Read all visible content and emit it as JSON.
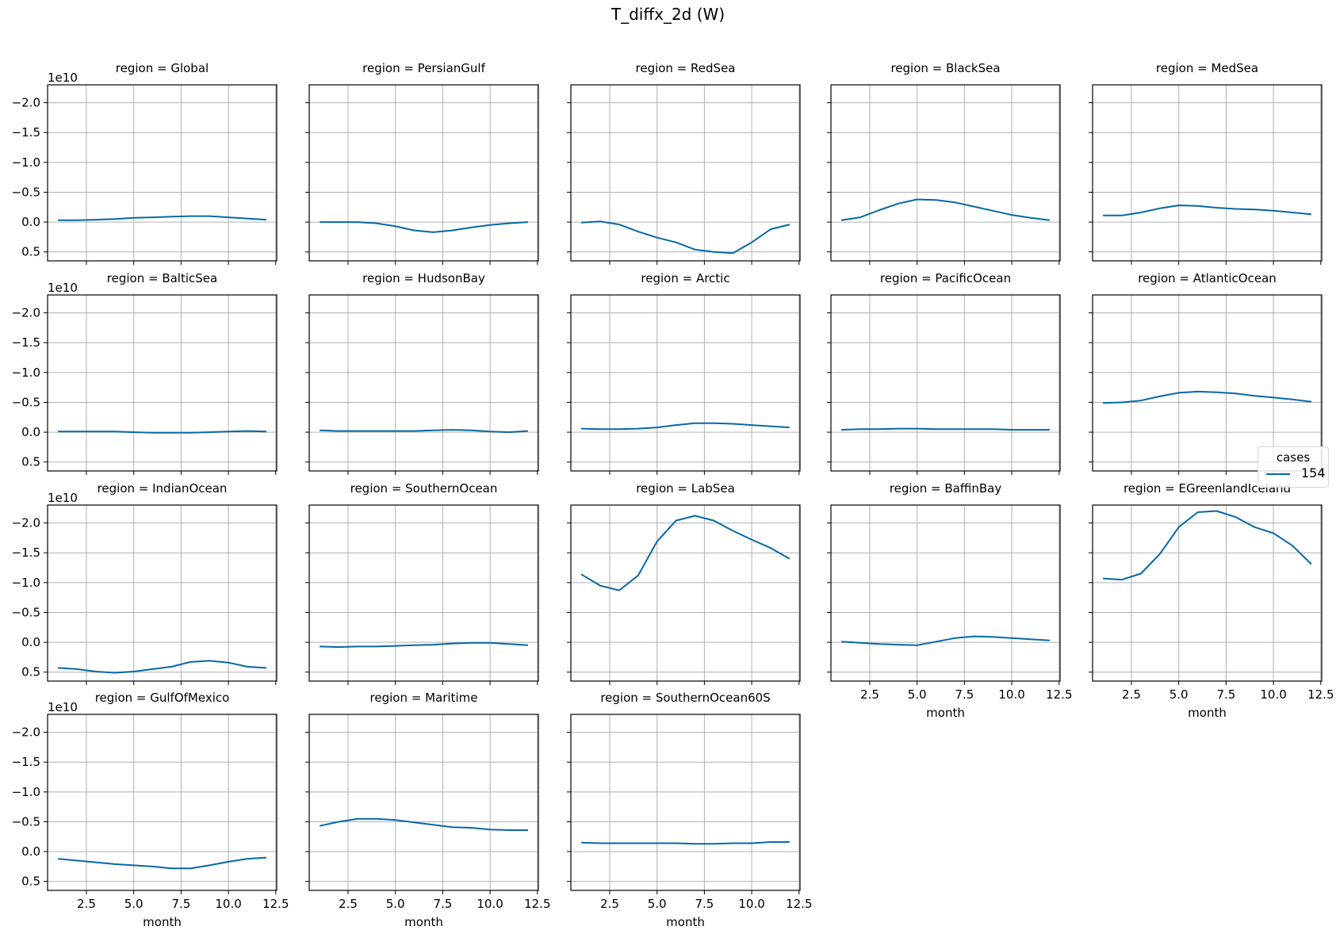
{
  "figure": {
    "title": "T_diffx_2d (W)",
    "line_color": "#0668a6",
    "grid_color": "#b0b0b0"
  },
  "legend": {
    "title": "cases",
    "entries": [
      {
        "label": "154",
        "color": "#0668a6"
      }
    ]
  },
  "chart_data": {
    "type": "line",
    "title": "T_diffx_2d (W)",
    "xlabel": "month",
    "ylabel": "",
    "y_scale_label": "1e10",
    "y_inverted": true,
    "ylim": [
      0.65,
      -2.3
    ],
    "xlim": [
      0.45,
      12.55
    ],
    "x_ticks": [
      "2.5",
      "5.0",
      "7.5",
      "10.0",
      "12.5"
    ],
    "y_ticks": [
      "−2.0",
      "−1.5",
      "−1.0",
      "−0.5",
      "0.0",
      "0.5"
    ],
    "y_tick_values": [
      -2.0,
      -1.5,
      -1.0,
      -0.5,
      0.0,
      0.5
    ],
    "x_tick_values": [
      2.5,
      5.0,
      7.5,
      10.0,
      12.5
    ],
    "grid": true,
    "legend_title": "cases",
    "legend_position": "right",
    "x": [
      1,
      2,
      3,
      4,
      5,
      6,
      7,
      8,
      9,
      10,
      11,
      12
    ],
    "series_name": "154",
    "panels": [
      {
        "title": "region = Global",
        "values": [
          -0.03,
          -0.03,
          -0.04,
          -0.05,
          -0.07,
          -0.08,
          -0.09,
          -0.1,
          -0.1,
          -0.08,
          -0.06,
          -0.04
        ]
      },
      {
        "title": "region = PersianGulf",
        "values": [
          0.0,
          0.0,
          0.0,
          0.02,
          0.07,
          0.14,
          0.17,
          0.14,
          0.09,
          0.05,
          0.02,
          0.0
        ]
      },
      {
        "title": "region = RedSea",
        "values": [
          0.01,
          -0.01,
          0.04,
          0.16,
          0.26,
          0.34,
          0.46,
          0.5,
          0.52,
          0.34,
          0.12,
          0.04
        ]
      },
      {
        "title": "region = BlackSea",
        "values": [
          -0.03,
          -0.08,
          -0.2,
          -0.31,
          -0.38,
          -0.37,
          -0.33,
          -0.26,
          -0.19,
          -0.12,
          -0.07,
          -0.03
        ]
      },
      {
        "title": "region = MedSea",
        "values": [
          -0.11,
          -0.11,
          -0.16,
          -0.23,
          -0.28,
          -0.27,
          -0.24,
          -0.22,
          -0.21,
          -0.19,
          -0.16,
          -0.13
        ]
      },
      {
        "title": "region = BalticSea",
        "values": [
          -0.01,
          -0.01,
          -0.01,
          -0.01,
          0.0,
          0.01,
          0.01,
          0.01,
          0.0,
          -0.01,
          -0.02,
          -0.01
        ]
      },
      {
        "title": "region = HudsonBay",
        "values": [
          -0.03,
          -0.02,
          -0.02,
          -0.02,
          -0.02,
          -0.02,
          -0.03,
          -0.04,
          -0.03,
          -0.01,
          0.0,
          -0.02
        ]
      },
      {
        "title": "region = Arctic",
        "values": [
          -0.06,
          -0.05,
          -0.05,
          -0.06,
          -0.08,
          -0.12,
          -0.15,
          -0.15,
          -0.14,
          -0.12,
          -0.1,
          -0.08
        ]
      },
      {
        "title": "region = PacificOcean",
        "values": [
          -0.04,
          -0.05,
          -0.05,
          -0.06,
          -0.06,
          -0.05,
          -0.05,
          -0.05,
          -0.05,
          -0.04,
          -0.04,
          -0.04
        ]
      },
      {
        "title": "region = AtlanticOcean",
        "values": [
          -0.49,
          -0.5,
          -0.53,
          -0.6,
          -0.66,
          -0.68,
          -0.67,
          -0.65,
          -0.61,
          -0.58,
          -0.55,
          -0.51
        ]
      },
      {
        "title": "region = IndianOcean",
        "values": [
          0.43,
          0.45,
          0.49,
          0.51,
          0.49,
          0.45,
          0.41,
          0.33,
          0.31,
          0.34,
          0.41,
          0.43
        ]
      },
      {
        "title": "region = SouthernOcean",
        "values": [
          0.07,
          0.08,
          0.07,
          0.07,
          0.06,
          0.05,
          0.04,
          0.02,
          0.01,
          0.01,
          0.03,
          0.05
        ]
      },
      {
        "title": "region = LabSea",
        "values": [
          -1.14,
          -0.95,
          -0.87,
          -1.12,
          -1.69,
          -2.04,
          -2.12,
          -2.04,
          -1.87,
          -1.72,
          -1.58,
          -1.4
        ]
      },
      {
        "title": "region = BaffinBay",
        "values": [
          -0.01,
          0.01,
          0.03,
          0.04,
          0.05,
          -0.01,
          -0.07,
          -0.1,
          -0.09,
          -0.07,
          -0.05,
          -0.03
        ]
      },
      {
        "title": "region = EGreenlandIceland",
        "values": [
          -1.07,
          -1.05,
          -1.15,
          -1.48,
          -1.93,
          -2.18,
          -2.2,
          -2.1,
          -1.93,
          -1.83,
          -1.62,
          -1.31
        ]
      },
      {
        "title": "region = GulfOfMexico",
        "values": [
          0.12,
          0.15,
          0.18,
          0.21,
          0.23,
          0.25,
          0.28,
          0.28,
          0.23,
          0.17,
          0.12,
          0.1
        ]
      },
      {
        "title": "region = Maritime",
        "values": [
          -0.43,
          -0.5,
          -0.55,
          -0.55,
          -0.53,
          -0.49,
          -0.45,
          -0.41,
          -0.4,
          -0.37,
          -0.36,
          -0.36
        ]
      },
      {
        "title": "region = SouthernOcean60S",
        "values": [
          -0.15,
          -0.14,
          -0.14,
          -0.14,
          -0.14,
          -0.14,
          -0.13,
          -0.13,
          -0.14,
          -0.14,
          -0.16,
          -0.16
        ]
      }
    ]
  }
}
